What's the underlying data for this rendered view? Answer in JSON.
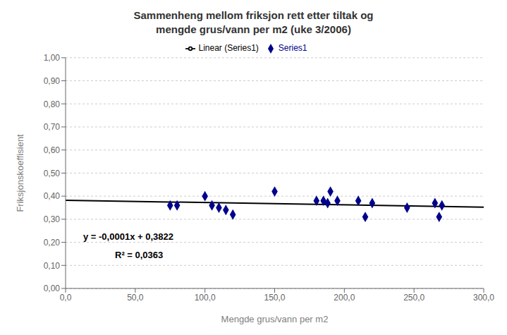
{
  "chart_data": {
    "type": "scatter",
    "title": "Sammenheng mellom friksjon rett etter tiltak og\nmengde grus/vann per m2 (uke 3/2006)",
    "x_label": "Mengde grus/vann per m2",
    "y_label": "Friksjonskoeffisient",
    "series": [
      {
        "name": "Series1",
        "type": "scatter",
        "color": "#00008B",
        "marker": "diamond",
        "x": [
          75,
          80,
          100,
          105,
          110,
          115,
          120,
          150,
          180,
          185,
          188,
          190,
          195,
          210,
          215,
          220,
          245,
          265,
          268,
          270
        ],
        "values": [
          0.36,
          0.36,
          0.4,
          0.36,
          0.35,
          0.34,
          0.32,
          0.42,
          0.38,
          0.38,
          0.37,
          0.42,
          0.38,
          0.38,
          0.31,
          0.37,
          0.35,
          0.37,
          0.31,
          0.36
        ]
      },
      {
        "name": "Linear (Series1)",
        "type": "line",
        "color": "#000000",
        "x": [
          0,
          300
        ],
        "values": [
          0.3822,
          0.3522
        ]
      }
    ],
    "xlim": [
      0,
      300
    ],
    "ylim": [
      0.0,
      1.0
    ],
    "xticks": [
      {
        "value": 0,
        "label": "0,0"
      },
      {
        "value": 50,
        "label": "50,0"
      },
      {
        "value": 100,
        "label": "100,0"
      },
      {
        "value": 150,
        "label": "150,0"
      },
      {
        "value": 200,
        "label": "200,0"
      },
      {
        "value": 250,
        "label": "250,0"
      },
      {
        "value": 300,
        "label": "300,0"
      }
    ],
    "yticks": [
      {
        "value": 0,
        "label": "0,00"
      },
      {
        "value": 0.1,
        "label": "0,10"
      },
      {
        "value": 0.2,
        "label": "0,20"
      },
      {
        "value": 0.3,
        "label": "0,30"
      },
      {
        "value": 0.4,
        "label": "0,40"
      },
      {
        "value": 0.5,
        "label": "0,50"
      },
      {
        "value": 0.6,
        "label": "0,60"
      },
      {
        "value": 0.7,
        "label": "0,70"
      },
      {
        "value": 0.8,
        "label": "0,80"
      },
      {
        "value": 0.9,
        "label": "0,90"
      },
      {
        "value": 1.0,
        "label": "1,00"
      }
    ],
    "annotations": [
      "y = -0,0001x + 0,3822",
      "R² = 0,0363"
    ],
    "grid": true,
    "legend": "top"
  }
}
